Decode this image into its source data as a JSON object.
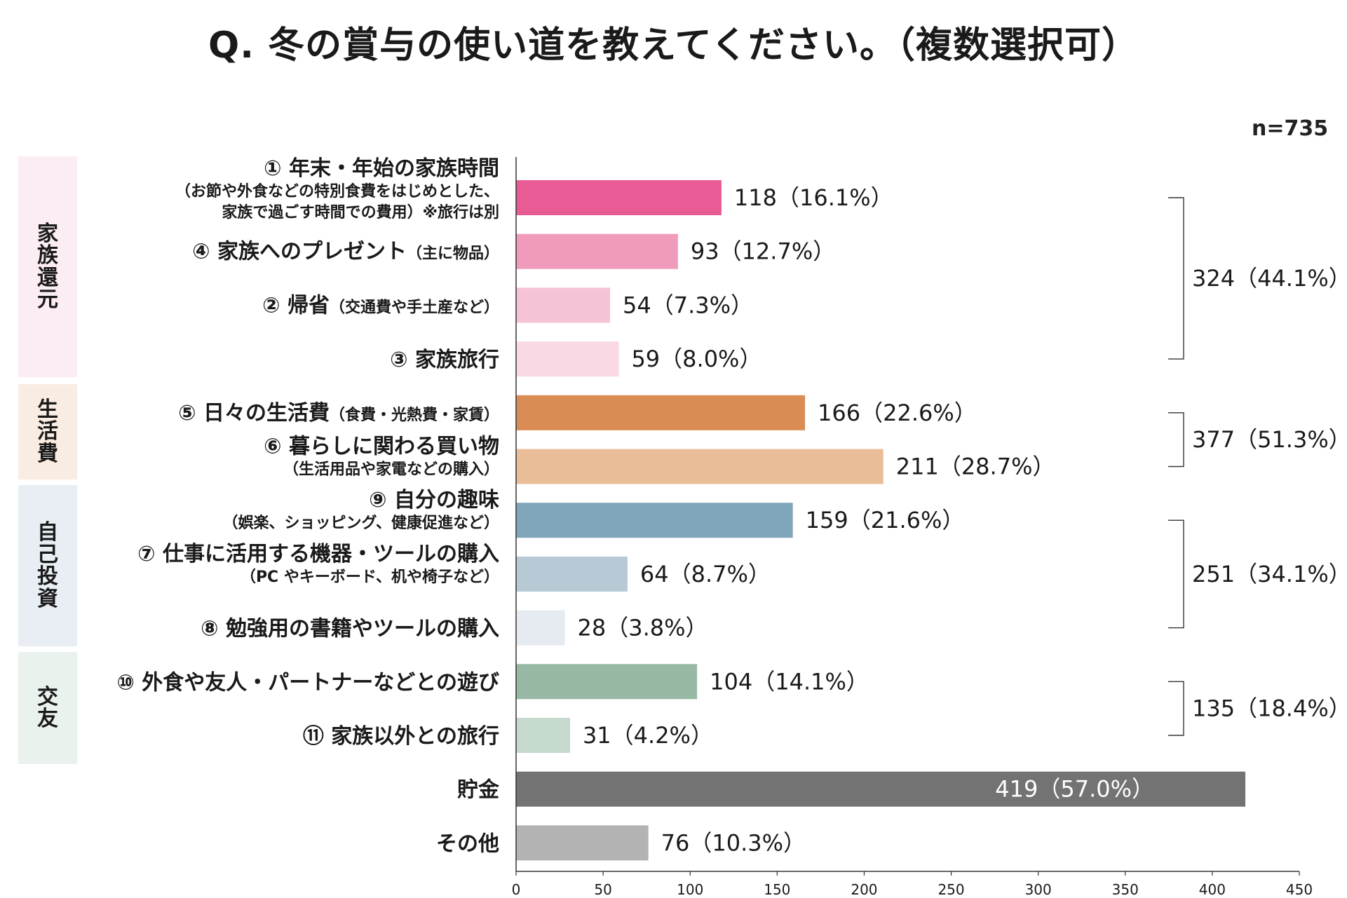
{
  "title": "Q.  冬の賞与の使い道を教えてください。（複数選択可）",
  "n_label": "n=735",
  "groups": [
    {
      "label": "家族還元",
      "color": "#fcecf3"
    },
    {
      "label": "生活費",
      "color": "#f9ede3"
    },
    {
      "label": "自己投資",
      "color": "#e8eef3"
    },
    {
      "label": "交友",
      "color": "#eaf2ed"
    }
  ],
  "chart_data": {
    "type": "bar",
    "orientation": "horizontal",
    "xlim": [
      0,
      450
    ],
    "ticks": [
      0,
      50,
      100,
      150,
      200,
      250,
      300,
      350,
      400,
      450
    ],
    "bars": [
      {
        "label": "① 年末・年始の家族時間",
        "sub": [
          "（お節や外食などの特別食費をはじめとした、",
          "家族で過ごす時間での費用）※旅行は別"
        ],
        "value": 118,
        "pct": "16.1%",
        "display": "118（16.1%）",
        "color": "#e85b94",
        "group": 0
      },
      {
        "label": "④ 家族へのプレゼント",
        "inline_sub": "（主に物品）",
        "value": 93,
        "pct": "12.7%",
        "display": "93（12.7%）",
        "color": "#f09bbb",
        "group": 0
      },
      {
        "label": "② 帰省",
        "inline_sub": "（交通費や手土産など）",
        "value": 54,
        "pct": "7.3%",
        "display": "54（7.3%）",
        "color": "#f6c3d6",
        "group": 0
      },
      {
        "label": "③ 家族旅行",
        "value": 59,
        "pct": "8.0%",
        "display": "59（8.0%）",
        "color": "#f8d9e4",
        "group": 0
      },
      {
        "label": "⑤ 日々の生活費",
        "inline_sub": "（食費・光熱費・家賃）",
        "value": 166,
        "pct": "22.6%",
        "display": "166（22.6%）",
        "color": "#d98c53",
        "group": 1
      },
      {
        "label": "⑥ 暮らしに関わる買い物",
        "sub": [
          "（生活用品や家電などの購入）"
        ],
        "value": 211,
        "pct": "28.7%",
        "display": "211（28.7%）",
        "color": "#eabd99",
        "group": 1
      },
      {
        "label": "⑨ 自分の趣味",
        "sub": [
          "（娯楽、ショッピング、健康促進など）"
        ],
        "value": 159,
        "pct": "21.6%",
        "display": "159（21.6%）",
        "color": "#80a6bb",
        "group": 2
      },
      {
        "label": "⑦ 仕事に活用する機器・ツールの購入",
        "sub": [
          "（PC やキーボード、机や椅子など）"
        ],
        "value": 64,
        "pct": "8.7%",
        "display": "64（8.7%）",
        "color": "#b7c9d5",
        "group": 2
      },
      {
        "label": "⑧ 勉強用の書籍やツールの購入",
        "value": 28,
        "pct": "3.8%",
        "display": "28（3.8%）",
        "color": "#e5ebf0",
        "group": 2
      },
      {
        "label": "⑩ 外食や友人・パートナーなどとの遊び",
        "value": 104,
        "pct": "14.1%",
        "display": "104（14.1%）",
        "color": "#97b8a3",
        "group": 3
      },
      {
        "label": "⑪ 家族以外との旅行",
        "value": 31,
        "pct": "4.2%",
        "display": "31（4.2%）",
        "color": "#c5d9cc",
        "group": 3
      },
      {
        "label": "貯金",
        "value": 419,
        "pct": "57.0%",
        "display": "419（57.0%）",
        "color": "#737373",
        "group": null,
        "label_inside": true
      },
      {
        "label": "その他",
        "value": 76,
        "pct": "10.3%",
        "display": "76（10.3%）",
        "color": "#b3b3b3",
        "group": null
      }
    ],
    "group_totals": [
      {
        "value": 324,
        "pct": "44.1%",
        "display": "324（44.1%）"
      },
      {
        "value": 377,
        "pct": "51.3%",
        "display": "377（51.3%）"
      },
      {
        "value": 251,
        "pct": "34.1%",
        "display": "251（34.1%）"
      },
      {
        "value": 135,
        "pct": "18.4%",
        "display": "135（18.4%）"
      }
    ]
  }
}
